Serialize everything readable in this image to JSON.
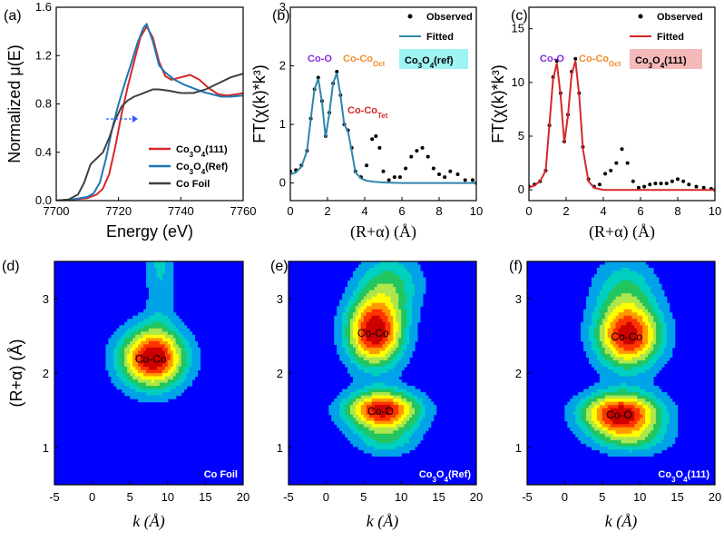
{
  "chart_data": [
    {
      "panel": "(a)",
      "type": "line",
      "xlabel": "Energy (eV)",
      "ylabel": "Normalized μ(E)",
      "xlim": [
        7700,
        7760
      ],
      "ylim": [
        0,
        1.6
      ],
      "xticks": [
        7700,
        7720,
        7740,
        7760
      ],
      "yticks": [
        0.0,
        0.4,
        0.8,
        1.2,
        1.6
      ],
      "legend_position": "bottom-right",
      "series": [
        {
          "name": "Co3O4(111)",
          "legend_sub": [
            "Co",
            "3",
            "O",
            "4",
            "(111)"
          ],
          "color": "#d62728",
          "x": [
            7700,
            7705,
            7710,
            7713,
            7715,
            7717,
            7719,
            7721,
            7723,
            7725,
            7727,
            7729,
            7731,
            7733,
            7735,
            7737,
            7740,
            7743,
            7746,
            7749,
            7752,
            7755,
            7758,
            7760
          ],
          "y": [
            0.0,
            0.01,
            0.02,
            0.05,
            0.1,
            0.22,
            0.45,
            0.72,
            0.95,
            1.15,
            1.35,
            1.44,
            1.35,
            1.15,
            1.03,
            1.0,
            1.02,
            1.04,
            1.0,
            0.93,
            0.88,
            0.87,
            0.88,
            0.89
          ]
        },
        {
          "name": "Co3O4(Ref)",
          "legend_sub": [
            "Co",
            "3",
            "O",
            "4",
            "(Ref)"
          ],
          "color": "#1f77b4",
          "x": [
            7700,
            7705,
            7710,
            7712,
            7714,
            7716,
            7718,
            7720,
            7722,
            7724,
            7726,
            7728,
            7729,
            7731,
            7733,
            7735,
            7738,
            7741,
            7744,
            7747,
            7750,
            7753,
            7756,
            7760
          ],
          "y": [
            0.0,
            0.01,
            0.03,
            0.06,
            0.15,
            0.35,
            0.6,
            0.8,
            0.97,
            1.13,
            1.3,
            1.43,
            1.46,
            1.32,
            1.12,
            1.06,
            1.0,
            0.96,
            0.93,
            0.9,
            0.88,
            0.86,
            0.86,
            0.87
          ]
        },
        {
          "name": "Co Foil",
          "color": "#404040",
          "x": [
            7700,
            7704,
            7707,
            7709,
            7711,
            7713,
            7715,
            7717,
            7719,
            7721,
            7723,
            7725,
            7727,
            7729,
            7731,
            7733,
            7736,
            7740,
            7744,
            7748,
            7752,
            7756,
            7760
          ],
          "y": [
            0.0,
            0.01,
            0.05,
            0.15,
            0.3,
            0.35,
            0.4,
            0.52,
            0.67,
            0.78,
            0.83,
            0.86,
            0.88,
            0.9,
            0.92,
            0.92,
            0.91,
            0.89,
            0.89,
            0.92,
            0.97,
            1.02,
            1.05
          ]
        }
      ]
    },
    {
      "panel": "(b)",
      "type": "line",
      "xlabel": "(R+α) (Å)",
      "ylabel": "FT(χ(k)*k³)",
      "xlim": [
        0,
        10
      ],
      "ylim": [
        -0.3,
        3
      ],
      "xticks": [
        0,
        2,
        4,
        6,
        8,
        10
      ],
      "yticks": [
        0,
        1,
        2,
        3
      ],
      "legend_position": "top-right",
      "sample_label": "Co3O4(ref)",
      "sample_label_sub": [
        "Co",
        "3",
        "O",
        "4",
        "(ref)"
      ],
      "peak_labels": [
        {
          "text": "Co-O",
          "color": "#8a2be2"
        },
        {
          "text": "Co-Co",
          "sub": "Oct",
          "color": "#f28c28"
        },
        {
          "text": "Co-Co",
          "sub": "Tet",
          "color": "#d62728"
        }
      ],
      "series": [
        {
          "name": "Observed",
          "style": "dots",
          "color": "#000000",
          "x": [
            0,
            0.3,
            0.6,
            0.9,
            1.1,
            1.3,
            1.5,
            1.7,
            1.9,
            2.1,
            2.3,
            2.5,
            2.7,
            2.9,
            3.1,
            3.3,
            3.5,
            3.8,
            4.1,
            4.4,
            4.6,
            4.8,
            5.0,
            5.3,
            5.6,
            5.9,
            6.2,
            6.5,
            6.8,
            7.1,
            7.4,
            7.7,
            8.0,
            8.3,
            8.6,
            9.0,
            9.4,
            9.8,
            10.0
          ],
          "y": [
            0.2,
            0.22,
            0.3,
            0.55,
            1.1,
            1.6,
            1.8,
            1.4,
            0.8,
            1.2,
            1.7,
            1.9,
            1.5,
            1.0,
            0.9,
            0.6,
            0.2,
            0.1,
            0.3,
            0.75,
            0.8,
            0.6,
            0.2,
            0.05,
            0.1,
            0.1,
            0.25,
            0.45,
            0.55,
            0.6,
            0.45,
            0.25,
            0.15,
            0.1,
            0.2,
            0.15,
            0.05,
            0.05,
            0.0
          ]
        },
        {
          "name": "Fitted",
          "style": "line",
          "color": "#2e86ab",
          "x": [
            0,
            0.3,
            0.6,
            0.9,
            1.1,
            1.3,
            1.5,
            1.7,
            1.9,
            2.1,
            2.3,
            2.5,
            2.7,
            2.9,
            3.1,
            3.3,
            3.5,
            3.8,
            4.1,
            4.5,
            5.0,
            6.0,
            7.0,
            8.0,
            9.0,
            10.0
          ],
          "y": [
            0.15,
            0.18,
            0.28,
            0.55,
            1.1,
            1.6,
            1.78,
            1.38,
            0.78,
            1.2,
            1.7,
            1.88,
            1.48,
            1.0,
            0.88,
            0.55,
            0.18,
            0.08,
            0.04,
            0.02,
            0.01,
            0.0,
            0.0,
            0.0,
            0.0,
            0.0
          ]
        }
      ]
    },
    {
      "panel": "(c)",
      "type": "line",
      "xlabel": "(R+α) (Å)",
      "ylabel": "FT(χ(k)*k³)",
      "xlim": [
        0,
        10
      ],
      "ylim": [
        -1,
        17
      ],
      "xticks": [
        0,
        2,
        4,
        6,
        8,
        10
      ],
      "yticks": [
        0,
        5,
        10,
        15
      ],
      "legend_position": "top-right",
      "sample_label": "Co3O4(111)",
      "sample_label_sub": [
        "Co",
        "3",
        "O",
        "4",
        "(111)"
      ],
      "peak_labels": [
        {
          "text": "Co-O",
          "color": "#8a2be2"
        },
        {
          "text": "Co-Co",
          "sub": "Oct",
          "color": "#f28c28"
        }
      ],
      "series": [
        {
          "name": "Observed",
          "style": "dots",
          "color": "#000000",
          "x": [
            0,
            0.3,
            0.6,
            0.9,
            1.1,
            1.3,
            1.5,
            1.7,
            1.9,
            2.1,
            2.3,
            2.5,
            2.7,
            2.9,
            3.2,
            3.5,
            3.8,
            4.1,
            4.4,
            4.7,
            5.0,
            5.3,
            5.6,
            5.9,
            6.2,
            6.5,
            6.8,
            7.1,
            7.4,
            7.7,
            8.0,
            8.3,
            8.6,
            9.0,
            9.4,
            9.8,
            10.0
          ],
          "y": [
            0.3,
            0.5,
            0.8,
            1.8,
            6.0,
            10.5,
            12.0,
            9.0,
            4.5,
            7.0,
            11.0,
            12.2,
            9.0,
            4.0,
            1.0,
            0.3,
            0.5,
            1.5,
            1.8,
            2.5,
            3.8,
            2.5,
            0.8,
            0.2,
            0.3,
            0.5,
            0.6,
            0.6,
            0.6,
            0.8,
            1.0,
            0.8,
            0.5,
            0.3,
            0.2,
            0.1,
            0.0
          ]
        },
        {
          "name": "Fitted",
          "style": "line",
          "color": "#d62728",
          "x": [
            0,
            0.3,
            0.6,
            0.9,
            1.1,
            1.3,
            1.5,
            1.7,
            1.9,
            2.1,
            2.3,
            2.5,
            2.7,
            2.9,
            3.2,
            3.5,
            4.0,
            5.0,
            6.0,
            7.0,
            8.0,
            9.0,
            10.0
          ],
          "y": [
            0.2,
            0.4,
            0.8,
            1.8,
            6.0,
            10.3,
            11.8,
            8.8,
            4.4,
            6.9,
            10.8,
            12.0,
            8.8,
            3.8,
            0.8,
            0.2,
            0.0,
            0.0,
            0.0,
            0.0,
            0.0,
            0.0,
            0.0
          ]
        }
      ]
    },
    {
      "panel": "(d)",
      "type": "heatmap",
      "xlabel": "k (Å)",
      "ylabel": "(R+α) (Å)",
      "xlim": [
        -5,
        20
      ],
      "ylim": [
        0.5,
        3.5
      ],
      "xticks": [
        -5,
        0,
        5,
        10,
        15,
        20
      ],
      "yticks": [
        1,
        2,
        3
      ],
      "sample_label": "Co Foil",
      "blobs": [
        {
          "label": "Co-Co",
          "k": 8,
          "r": 2.2,
          "amp": 1.0,
          "sk": 3.0,
          "sr": 0.28
        },
        {
          "k": 9,
          "r": 3.6,
          "amp": 0.25,
          "sk": 1.5,
          "sr": 0.7
        }
      ]
    },
    {
      "panel": "(e)",
      "type": "heatmap",
      "xlabel": "k (Å)",
      "ylabel": "",
      "xlim": [
        -5,
        20
      ],
      "ylim": [
        0.5,
        3.5
      ],
      "xticks": [
        -5,
        0,
        5,
        10,
        15,
        20
      ],
      "yticks": [
        1,
        2,
        3
      ],
      "sample_label": "Co3O4(Ref)",
      "sample_label_sub": [
        "Co",
        "3",
        "O",
        "4",
        "(Ref)"
      ],
      "blobs": [
        {
          "label": "Co-Co",
          "k": 6.5,
          "r": 2.55,
          "amp": 1.0,
          "sk": 2.6,
          "sr": 0.32
        },
        {
          "label": "Co-O",
          "k": 7.5,
          "r": 1.5,
          "amp": 0.95,
          "sk": 3.4,
          "sr": 0.18
        },
        {
          "k": 8.5,
          "r": 3.2,
          "amp": 0.35,
          "sk": 3.0,
          "sr": 0.3
        },
        {
          "k": 8.0,
          "r": 1.1,
          "amp": 0.3,
          "sk": 3.0,
          "sr": 0.15
        }
      ]
    },
    {
      "panel": "(f)",
      "type": "heatmap",
      "xlabel": "k (Å)",
      "ylabel": "",
      "xlim": [
        -5,
        20
      ],
      "ylim": [
        0.5,
        3.5
      ],
      "xticks": [
        -5,
        0,
        5,
        10,
        15,
        20
      ],
      "yticks": [
        1,
        2,
        3
      ],
      "sample_label": "Co3O4(111)",
      "sample_label_sub": [
        "Co",
        "3",
        "O",
        "4",
        "(111)"
      ],
      "blobs": [
        {
          "label": "Co-Co",
          "k": 8.5,
          "r": 2.5,
          "amp": 0.95,
          "sk": 3.0,
          "sr": 0.3
        },
        {
          "label": "Co-O",
          "k": 7.5,
          "r": 1.45,
          "amp": 1.0,
          "sk": 3.6,
          "sr": 0.2
        },
        {
          "k": 8.0,
          "r": 3.15,
          "amp": 0.3,
          "sk": 3.0,
          "sr": 0.3
        },
        {
          "k": 9.0,
          "r": 1.1,
          "amp": 0.3,
          "sk": 3.5,
          "sr": 0.15
        }
      ]
    }
  ],
  "colormap": [
    "#0000ff",
    "#00a2e8",
    "#00d0c0",
    "#22c55e",
    "#aee64c",
    "#ffff00",
    "#ff9900",
    "#ff3300",
    "#cc0000"
  ]
}
